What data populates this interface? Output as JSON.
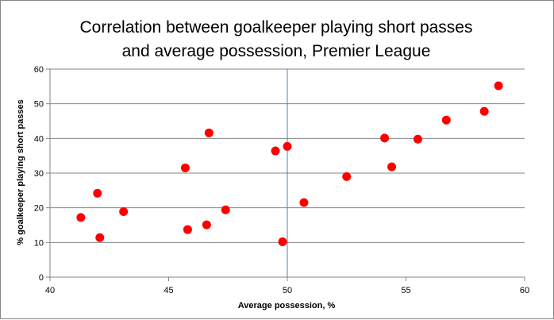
{
  "chart_data": {
    "type": "scatter",
    "title_lines": [
      "Correlation between goalkeeper playing short passes",
      "and average possession, Premier League"
    ],
    "xlabel": "Average possession,  %",
    "ylabel": "% goalkeeper playing short passes",
    "xlim": [
      40,
      60
    ],
    "ylim": [
      0,
      60
    ],
    "x_ticks": [
      "40",
      "45",
      "50",
      "55",
      "60"
    ],
    "y_ticks": [
      "0",
      "10",
      "20",
      "30",
      "40",
      "50",
      "60"
    ],
    "grid": "horizontal",
    "reference_line_x": 50,
    "marker_color": "#ff0000",
    "gridline_color": "#868686",
    "reference_line_color": "#4f81bd",
    "points": [
      {
        "x": 41.3,
        "y": 17.2
      },
      {
        "x": 42.0,
        "y": 24.2
      },
      {
        "x": 42.1,
        "y": 11.4
      },
      {
        "x": 43.1,
        "y": 18.9
      },
      {
        "x": 45.7,
        "y": 31.5
      },
      {
        "x": 45.8,
        "y": 13.7
      },
      {
        "x": 46.6,
        "y": 15.1
      },
      {
        "x": 46.7,
        "y": 41.6
      },
      {
        "x": 47.4,
        "y": 19.4
      },
      {
        "x": 49.5,
        "y": 36.4
      },
      {
        "x": 49.8,
        "y": 10.2
      },
      {
        "x": 50.0,
        "y": 37.7
      },
      {
        "x": 50.7,
        "y": 21.5
      },
      {
        "x": 52.5,
        "y": 29.0
      },
      {
        "x": 54.1,
        "y": 40.1
      },
      {
        "x": 54.4,
        "y": 31.8
      },
      {
        "x": 55.5,
        "y": 39.8
      },
      {
        "x": 56.7,
        "y": 45.3
      },
      {
        "x": 58.3,
        "y": 47.8
      },
      {
        "x": 58.9,
        "y": 55.2
      }
    ]
  }
}
